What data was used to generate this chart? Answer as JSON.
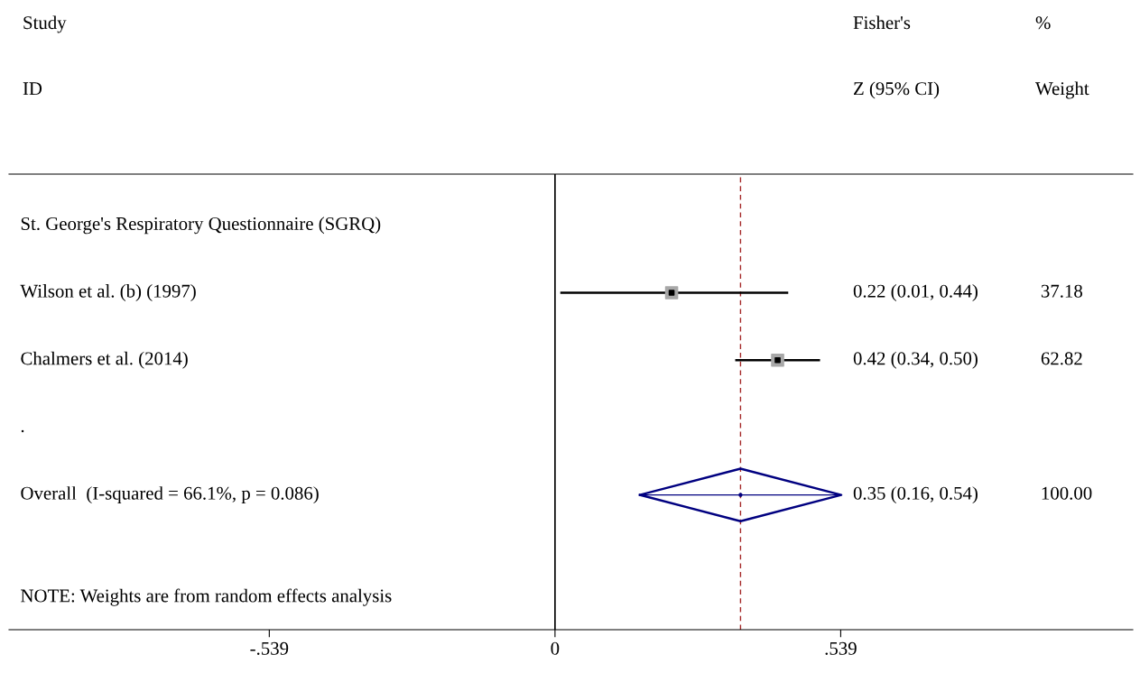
{
  "chart_data": {
    "type": "scatter",
    "orientation": "horizontal",
    "categories": [
      "St. George's Respiratory Questionnaire (SGRQ)",
      "Wilson et al. (b) (1997)",
      "Chalmers et al. (2014)",
      ".",
      "Overall  (I-squared = 66.1%, p = 0.086)"
    ],
    "series": [
      {
        "marker": "square",
        "color": "#000000",
        "values": [
          null,
          0.22,
          0.42,
          null,
          null
        ],
        "errors": [
          null,
          [
            0.01,
            0.44
          ],
          [
            0.34,
            0.5
          ],
          null,
          null
        ]
      },
      {
        "marker": "none",
        "color": "#000080",
        "values": [
          null,
          null,
          null,
          null,
          0.35
        ],
        "errors": [
          null,
          null,
          null,
          null,
          [
            0.16,
            0.54
          ]
        ]
      }
    ],
    "value_labels": [
      null,
      "0.22 (0.01, 0.44)",
      "0.42 (0.34, 0.50)",
      null,
      "0.35 (0.16, 0.54)"
    ],
    "annotations": [
      "Study",
      "ID",
      "Fisher's",
      "Z (95% CI)",
      "%",
      "Weight",
      "37.18",
      "62.82",
      "100.00",
      "NOTE: Weights are from random effects analysis"
    ],
    "xlim": [
      -1.03,
      1.09
    ],
    "xticks": [
      {
        "value": -0.539,
        "label": "-.539"
      },
      0,
      {
        "value": 0.539,
        "label": ".539"
      }
    ],
    "ref_lines": [
      {
        "axis": "x",
        "value": 0,
        "color": "#000000",
        "line_style": "solid"
      },
      {
        "axis": "x",
        "value": 0.35,
        "color": "#a52a2a",
        "line_style": "dashed"
      }
    ],
    "grid": false,
    "legend": false
  }
}
